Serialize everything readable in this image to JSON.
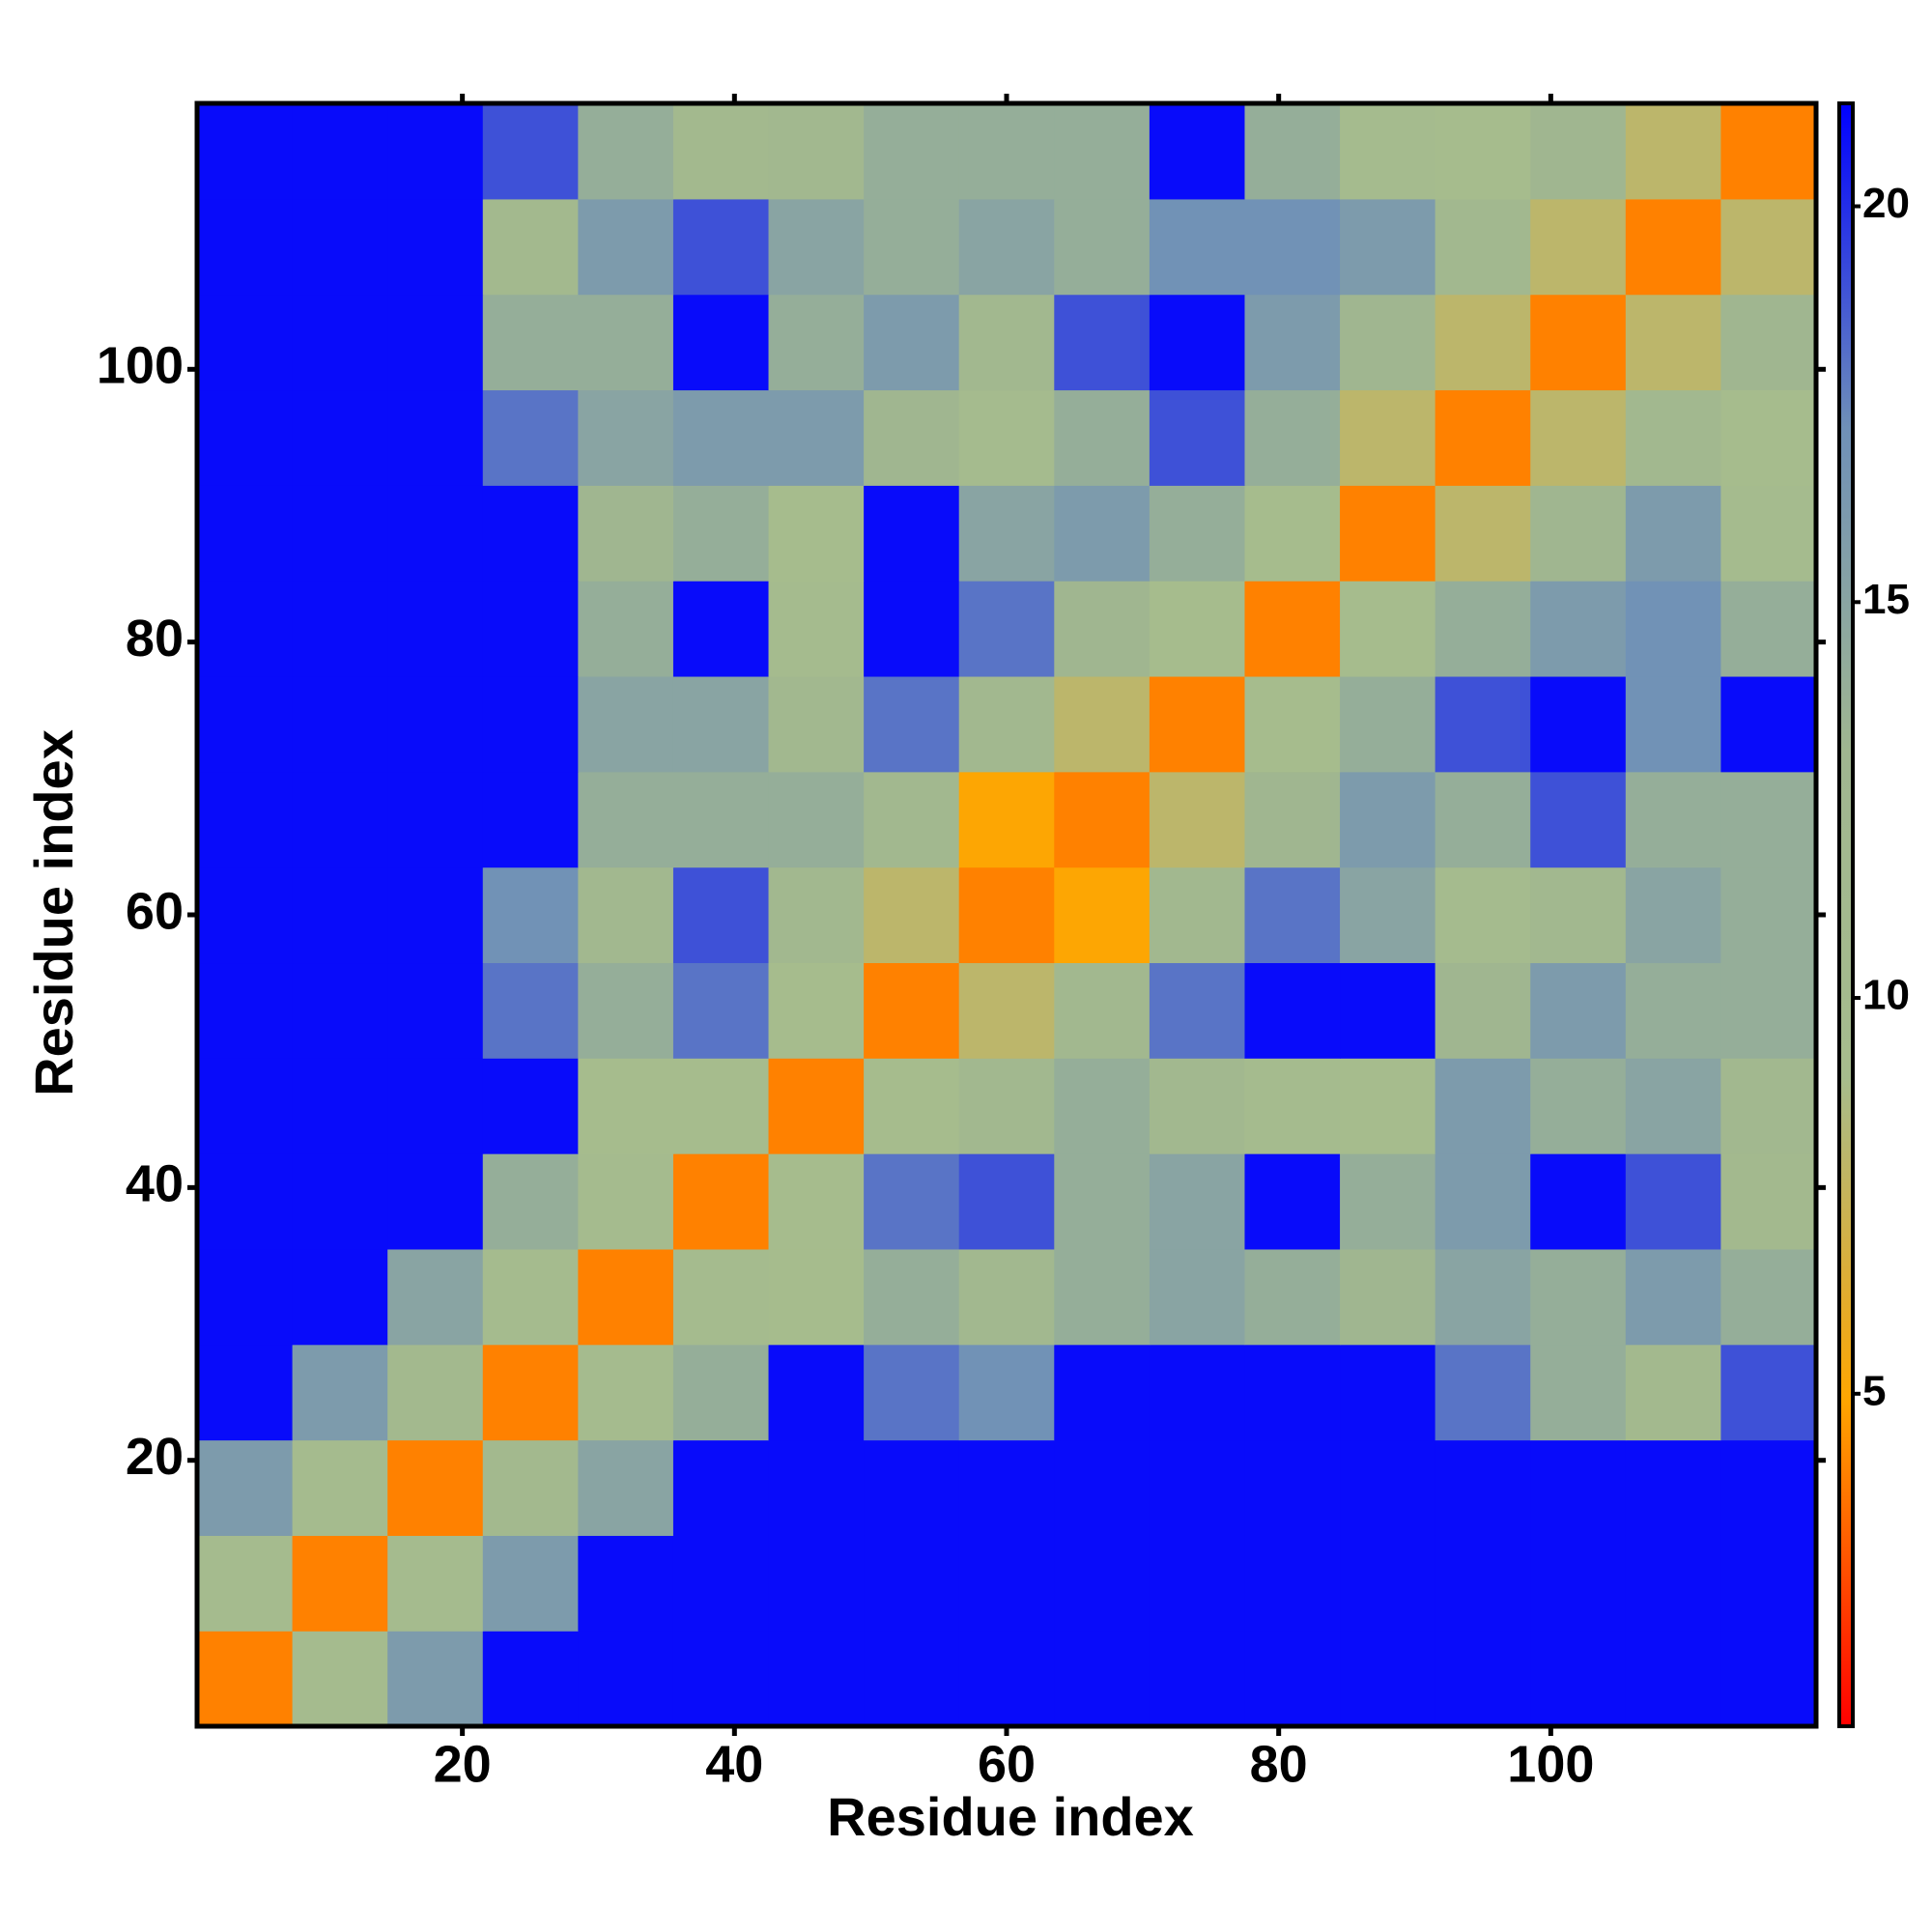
{
  "chart_data": {
    "type": "heatmap",
    "xlabel": "Residue index",
    "ylabel": "Residue index",
    "x_bins": [
      0.5,
      7.5,
      14.5,
      21.5,
      28.5,
      35.5,
      42.5,
      49.5,
      56.5,
      63.5,
      70.5,
      77.5,
      84.5,
      91.5,
      98.5,
      105.5,
      112.5,
      119.5
    ],
    "y_bins": [
      0.5,
      7.5,
      14.5,
      21.5,
      28.5,
      35.5,
      42.5,
      49.5,
      56.5,
      63.5,
      70.5,
      77.5,
      84.5,
      91.5,
      98.5,
      105.5,
      112.5,
      119.5
    ],
    "values": [
      [
        4,
        10,
        16,
        21,
        21,
        21,
        21,
        21,
        21,
        21,
        21,
        21,
        21,
        21,
        21,
        21,
        21
      ],
      [
        10,
        4,
        10,
        16,
        21,
        21,
        21,
        21,
        21,
        21,
        21,
        21,
        21,
        21,
        21,
        21,
        21
      ],
      [
        16,
        10,
        4,
        11,
        15,
        21,
        21,
        21,
        21,
        21,
        21,
        21,
        21,
        21,
        21,
        21,
        21
      ],
      [
        21,
        16,
        11,
        4,
        10,
        14,
        21,
        18,
        17,
        21,
        21,
        21,
        21,
        18,
        14,
        11,
        19
      ],
      [
        21,
        21,
        15,
        10,
        4,
        10,
        9,
        14,
        12,
        14,
        15,
        14,
        13,
        15,
        14,
        16,
        14
      ],
      [
        21,
        21,
        21,
        14,
        10,
        4,
        9,
        18,
        19,
        14,
        15,
        21,
        14,
        16,
        21,
        19,
        11
      ],
      [
        21,
        21,
        21,
        21,
        9,
        9,
        4,
        9,
        12,
        14,
        12,
        10,
        9,
        16,
        14,
        15,
        12
      ],
      [
        21,
        21,
        21,
        18,
        14,
        18,
        9,
        4,
        8,
        12,
        18,
        21,
        21,
        13,
        16,
        14,
        14
      ],
      [
        21,
        21,
        21,
        17,
        12,
        19,
        12,
        8,
        4,
        5,
        12,
        18,
        15,
        10,
        12,
        15,
        14
      ],
      [
        21,
        21,
        21,
        21,
        14,
        14,
        14,
        12,
        5,
        4,
        8,
        13,
        16,
        14,
        19,
        14,
        14
      ],
      [
        21,
        21,
        21,
        21,
        15,
        15,
        12,
        18,
        12,
        8,
        4,
        9,
        14,
        19,
        21,
        17,
        21
      ],
      [
        21,
        21,
        21,
        21,
        14,
        21,
        10,
        21,
        18,
        13,
        9,
        4,
        9,
        14,
        16,
        17,
        14
      ],
      [
        21,
        21,
        21,
        21,
        13,
        14,
        9,
        21,
        15,
        16,
        14,
        9,
        4,
        8,
        13,
        16,
        10
      ],
      [
        21,
        21,
        21,
        18,
        15,
        16,
        16,
        13,
        10,
        14,
        19,
        14,
        8,
        4,
        8,
        12,
        9
      ],
      [
        21,
        21,
        21,
        14,
        14,
        21,
        14,
        16,
        12,
        19,
        21,
        16,
        13,
        8,
        4,
        8,
        13
      ],
      [
        21,
        21,
        21,
        11,
        16,
        19,
        15,
        14,
        15,
        14,
        17,
        17,
        16,
        12,
        8,
        4,
        8
      ],
      [
        21,
        21,
        21,
        19,
        14,
        11,
        12,
        14,
        14,
        14,
        21,
        14,
        10,
        9,
        13,
        8,
        4
      ]
    ],
    "xlim": [
      0.5,
      119.5
    ],
    "ylim": [
      0.5,
      119.5
    ],
    "xticks": [
      20,
      40,
      60,
      80,
      100
    ],
    "yticks": [
      20,
      40,
      60,
      80,
      100
    ],
    "colors": [
      "#ff0000",
      "#ffa500",
      "#a6bc8d",
      "#a0b690",
      "#6f90b8",
      "#0000ff"
    ],
    "colorbar": {
      "lim": [
        0.8,
        21.3
      ],
      "ticks": [
        5,
        10,
        15,
        20
      ]
    }
  }
}
